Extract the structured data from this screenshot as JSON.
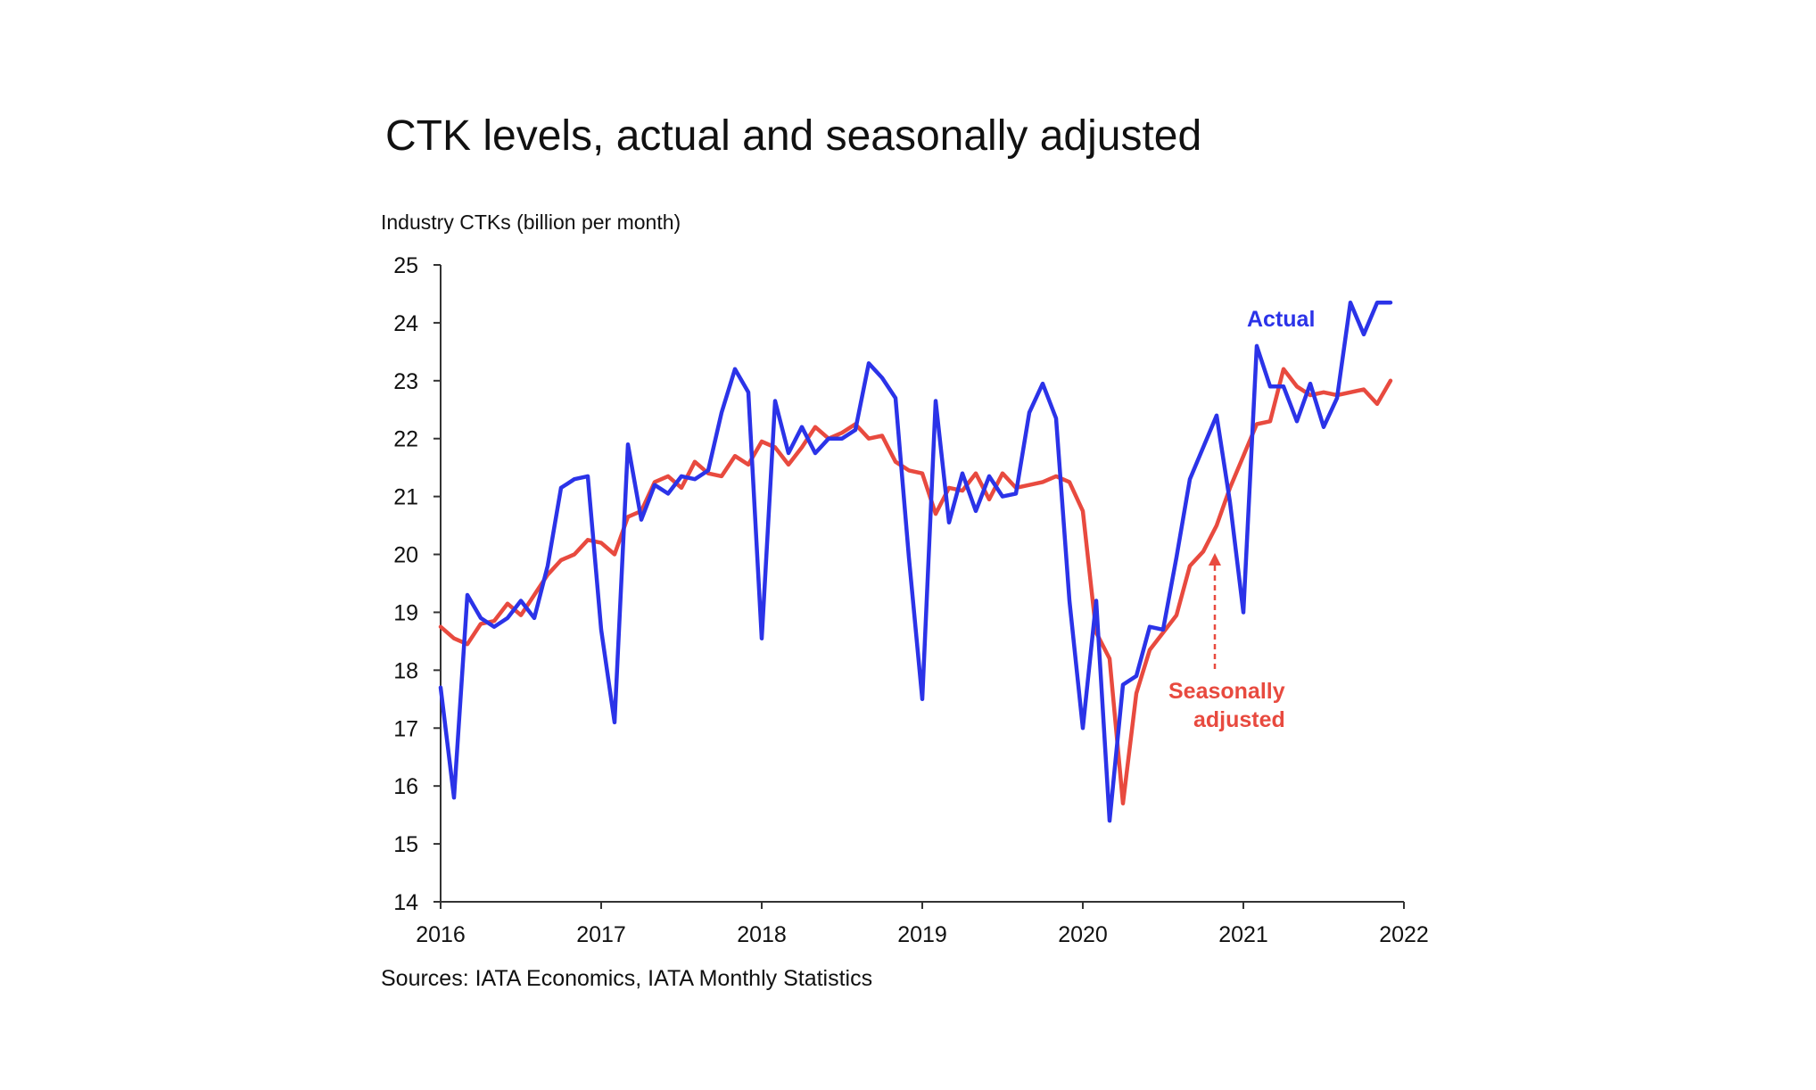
{
  "title": "CTK levels, actual and seasonally adjusted",
  "source": "Sources: IATA Economics, IATA Monthly Statistics",
  "colors": {
    "actual": "#2b33e8",
    "seasonally_adjusted": "#e84a3f",
    "axis": "#333333",
    "text": "#111111"
  },
  "chart_data": {
    "type": "line",
    "title": "CTK levels, actual and seasonally adjusted",
    "ylabel": "Industry CTKs (billion per month)",
    "xlabel": "",
    "ylim": [
      14,
      25
    ],
    "yticks": [
      14,
      15,
      16,
      17,
      18,
      19,
      20,
      21,
      22,
      23,
      24,
      25
    ],
    "xlim": [
      2016,
      2022
    ],
    "xticks": [
      2016,
      2017,
      2018,
      2019,
      2020,
      2021,
      2022
    ],
    "grid": false,
    "x_unit": "months from Jan 2016 (12 per year)",
    "series": [
      {
        "name": "Actual",
        "color": "#2b33e8",
        "values": [
          17.7,
          15.8,
          19.3,
          18.9,
          18.75,
          18.9,
          19.2,
          18.9,
          19.8,
          21.15,
          21.3,
          21.35,
          18.7,
          17.1,
          21.9,
          20.6,
          21.2,
          21.05,
          21.35,
          21.3,
          21.45,
          22.45,
          23.2,
          22.8,
          18.55,
          22.65,
          21.75,
          22.2,
          21.75,
          22.0,
          22.0,
          22.15,
          23.3,
          23.05,
          22.7,
          19.95,
          17.5,
          22.65,
          20.55,
          21.4,
          20.75,
          21.35,
          21.0,
          21.05,
          22.45,
          22.95,
          22.35,
          19.2,
          17.0,
          19.2,
          15.4,
          17.75,
          17.9,
          18.75,
          18.7,
          19.95,
          21.3,
          21.85,
          22.4,
          20.9,
          19.0,
          23.6,
          22.9,
          22.9,
          22.3,
          22.95,
          22.2,
          22.7,
          24.35,
          23.8,
          24.35,
          24.35
        ]
      },
      {
        "name": "Seasonally adjusted",
        "color": "#e84a3f",
        "values": [
          18.75,
          18.55,
          18.45,
          18.8,
          18.85,
          19.15,
          18.95,
          19.3,
          19.65,
          19.9,
          20.0,
          20.25,
          20.2,
          20.0,
          20.65,
          20.75,
          21.25,
          21.35,
          21.15,
          21.6,
          21.4,
          21.35,
          21.7,
          21.55,
          21.95,
          21.85,
          21.55,
          21.85,
          22.2,
          22.0,
          22.1,
          22.25,
          22.0,
          22.05,
          21.6,
          21.45,
          21.4,
          20.7,
          21.15,
          21.1,
          21.4,
          20.95,
          21.4,
          21.15,
          21.2,
          21.25,
          21.35,
          21.25,
          20.75,
          18.65,
          18.2,
          15.7,
          17.6,
          18.35,
          18.65,
          18.95,
          19.8,
          20.05,
          20.5,
          21.15,
          21.7,
          22.25,
          22.3,
          23.2,
          22.9,
          22.75,
          22.8,
          22.75,
          22.8,
          22.85,
          22.6,
          23.0
        ]
      }
    ],
    "annotations": [
      {
        "text": "Actual",
        "series": "Actual"
      },
      {
        "text": "Seasonally",
        "series": "Seasonally adjusted"
      },
      {
        "text": "adjusted",
        "series": "Seasonally adjusted"
      }
    ]
  }
}
